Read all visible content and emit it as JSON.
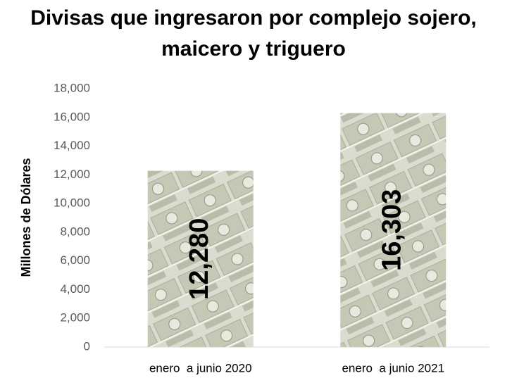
{
  "chart_data": {
    "type": "bar",
    "title": "Divisas que ingresaron por complejo sojero, maicero y triguero",
    "y_label": "Millones de Dólares",
    "categories": [
      "enero  a junio 2020",
      "enero  a junio 2021"
    ],
    "values": [
      12280,
      16303
    ],
    "value_labels": [
      "12,280",
      "16,303"
    ],
    "ylim": [
      0,
      18000
    ],
    "yticks": [
      0,
      {
        "value": 2000,
        "label": "2,000"
      },
      {
        "value": 4000,
        "label": "4,000"
      },
      {
        "value": 6000,
        "label": "6,000"
      },
      {
        "value": 8000,
        "label": "8,000"
      },
      {
        "value": 10000,
        "label": "10,000"
      },
      {
        "value": 12000,
        "label": "12,000"
      },
      {
        "value": 14000,
        "label": "14,000"
      },
      {
        "value": 16000,
        "label": "16,000"
      },
      {
        "value": 18000,
        "label": "18,000"
      }
    ],
    "grid": false
  }
}
